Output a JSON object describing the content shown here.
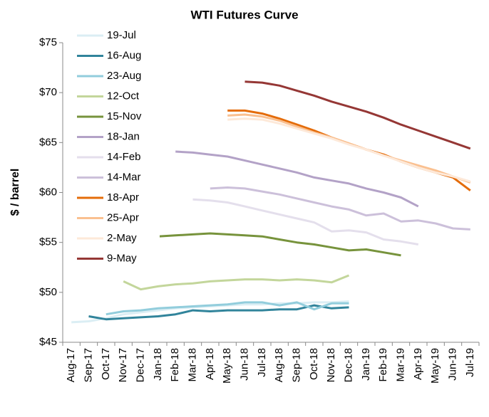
{
  "chart_data": {
    "type": "line",
    "title": "WTI Futures Curve",
    "y_label": "$ / barrel",
    "categories": [
      "Aug-17",
      "Sep-17",
      "Oct-17",
      "Nov-17",
      "Dec-17",
      "Jan-18",
      "Feb-18",
      "Mar-18",
      "Apr-18",
      "May-18",
      "Jun-18",
      "Jul-18",
      "Aug-18",
      "Sep-18",
      "Oct-18",
      "Nov-18",
      "Dec-18",
      "Jan-19",
      "Feb-19",
      "Mar-19",
      "Apr-19",
      "May-19",
      "Jun-19",
      "Jul-19"
    ],
    "ylim": [
      45,
      75
    ],
    "yticks": [
      {
        "value": 45,
        "label": "$45"
      },
      {
        "value": 50,
        "label": "$50"
      },
      {
        "value": 55,
        "label": "$55"
      },
      {
        "value": 60,
        "label": "$60"
      },
      {
        "value": 65,
        "label": "$65"
      },
      {
        "value": 70,
        "label": "$70"
      },
      {
        "value": 75,
        "label": "$75"
      }
    ],
    "legend": "top-left",
    "series": [
      {
        "name": "19-Jul",
        "color": "#dbeef4",
        "values": [
          47.0,
          47.1,
          47.4,
          47.8,
          48.0,
          48.2,
          48.4,
          48.5,
          48.6,
          48.7,
          48.8,
          48.8,
          48.9,
          48.9,
          49.0,
          49.0,
          49.1,
          null,
          null,
          null,
          null,
          null,
          null,
          null
        ]
      },
      {
        "name": "16-Aug",
        "color": "#31849b",
        "values": [
          null,
          47.6,
          47.3,
          47.4,
          47.5,
          47.6,
          47.8,
          48.2,
          48.1,
          48.2,
          48.2,
          48.2,
          48.3,
          48.3,
          48.7,
          48.4,
          48.5,
          null,
          null,
          null,
          null,
          null,
          null,
          null
        ]
      },
      {
        "name": "23-Aug",
        "color": "#92cddc",
        "values": [
          null,
          null,
          47.8,
          48.1,
          48.2,
          48.4,
          48.5,
          48.6,
          48.7,
          48.8,
          49.0,
          49.0,
          48.7,
          49.0,
          48.3,
          48.9,
          48.9,
          null,
          null,
          null,
          null,
          null,
          null,
          null
        ]
      },
      {
        "name": "12-Oct",
        "color": "#c3d69b",
        "values": [
          null,
          null,
          null,
          51.1,
          50.3,
          50.6,
          50.8,
          50.9,
          51.1,
          51.2,
          51.3,
          51.3,
          51.2,
          51.3,
          51.2,
          51.0,
          51.7,
          null,
          null,
          null,
          null,
          null,
          null,
          null
        ]
      },
      {
        "name": "15-Nov",
        "color": "#77933c",
        "values": [
          null,
          null,
          null,
          null,
          55.3,
          55.6,
          55.7,
          55.8,
          55.9,
          55.8,
          55.7,
          55.6,
          55.3,
          55.0,
          54.8,
          54.5,
          54.2,
          54.3,
          54.0,
          53.7,
          null,
          null,
          null,
          null
        ]
      },
      {
        "name": "18-Jan",
        "color": "#b3a2c7",
        "values": [
          null,
          null,
          null,
          null,
          null,
          null,
          64.1,
          64.0,
          63.8,
          63.6,
          63.2,
          62.8,
          62.4,
          62.0,
          61.5,
          61.2,
          60.9,
          60.4,
          60.0,
          59.5,
          58.6,
          null,
          null,
          null
        ]
      },
      {
        "name": "14-Feb",
        "color": "#e4dfec",
        "values": [
          null,
          null,
          null,
          null,
          null,
          null,
          null,
          59.3,
          59.2,
          59.0,
          58.6,
          58.2,
          57.8,
          57.4,
          57.0,
          56.1,
          56.2,
          56.0,
          55.3,
          55.1,
          54.8,
          null,
          null,
          null
        ]
      },
      {
        "name": "14-Mar",
        "color": "#ccc0da",
        "values": [
          null,
          null,
          null,
          null,
          null,
          null,
          null,
          null,
          60.4,
          60.5,
          60.4,
          60.1,
          59.8,
          59.4,
          59.0,
          58.6,
          58.3,
          57.7,
          57.9,
          57.1,
          57.2,
          56.9,
          56.4,
          56.3
        ]
      },
      {
        "name": "18-Apr",
        "color": "#e46c0a",
        "values": [
          null,
          null,
          null,
          null,
          null,
          null,
          null,
          null,
          null,
          68.2,
          68.2,
          67.9,
          67.4,
          66.8,
          66.2,
          65.5,
          64.9,
          64.3,
          63.8,
          63.1,
          62.5,
          62.0,
          61.5,
          60.2
        ]
      },
      {
        "name": "25-Apr",
        "color": "#fac090",
        "values": [
          null,
          null,
          null,
          null,
          null,
          null,
          null,
          null,
          null,
          67.7,
          67.8,
          67.6,
          67.2,
          66.6,
          66.0,
          65.5,
          64.9,
          64.3,
          63.7,
          63.2,
          62.7,
          62.2,
          61.6,
          61.0
        ]
      },
      {
        "name": "2-May",
        "color": "#fde9d9",
        "values": [
          null,
          null,
          null,
          null,
          null,
          null,
          null,
          null,
          null,
          67.3,
          67.4,
          67.3,
          66.9,
          66.4,
          65.9,
          65.4,
          64.8,
          64.3,
          63.7,
          63.1,
          62.5,
          62.0,
          61.6,
          61.1
        ]
      },
      {
        "name": "9-May",
        "color": "#953735",
        "values": [
          null,
          null,
          null,
          null,
          null,
          null,
          null,
          null,
          null,
          null,
          71.1,
          71.0,
          70.7,
          70.2,
          69.7,
          69.1,
          68.6,
          68.1,
          67.5,
          66.8,
          66.2,
          65.6,
          65.0,
          64.4
        ]
      }
    ]
  }
}
